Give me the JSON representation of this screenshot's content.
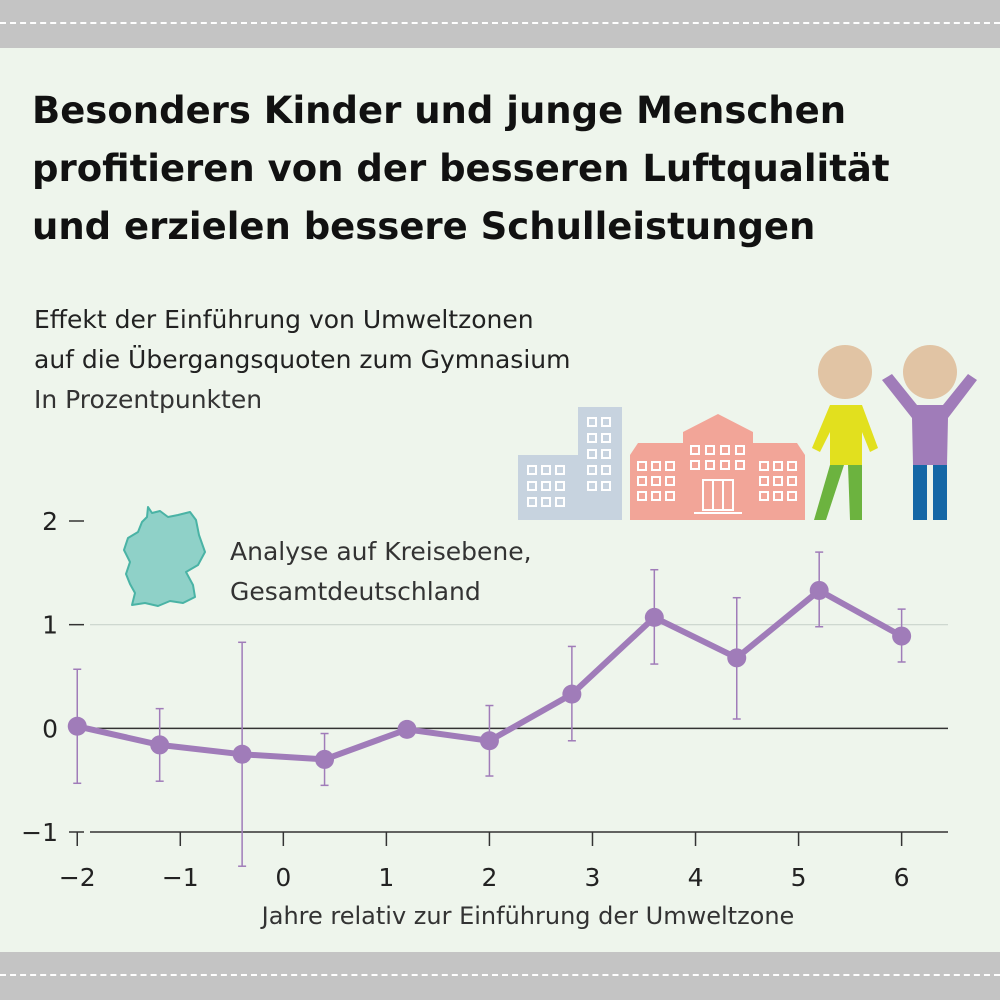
{
  "headline": "Besonders Kinder und junge Menschen profitieren von der besseren Luftqualität und erzielen bessere Schulleistungen",
  "chart_data": {
    "type": "line",
    "title": "Effekt der Einführung von Umweltzonen",
    "subtitle": "auf die Übergangsquoten zum Gymnasium",
    "unit": "In Prozentpunkten",
    "annotation_line1": "Analyse auf Kreisebene,",
    "annotation_line2": "Gesamtdeutschland",
    "xlabel": "Jahre relativ zur Einführung der Umweltzone",
    "ylabel": "",
    "xlim": [
      -2.08,
      6.45
    ],
    "ylim": [
      -1,
      2
    ],
    "x_ticks": [
      -2,
      -1,
      0,
      1,
      2,
      3,
      4,
      5,
      6
    ],
    "x_tick_labels": [
      "−2",
      "−1",
      "0",
      "1",
      "2",
      "3",
      "4",
      "5",
      "6"
    ],
    "y_ticks": [
      -1,
      0,
      1,
      2
    ],
    "y_tick_labels": [
      "−1",
      "0",
      "1",
      "2"
    ],
    "grid": true,
    "series": [
      {
        "color": "#a07cb9",
        "points": [
          {
            "x": -2.0,
            "y": 0.02,
            "lo": -0.53,
            "hi": 0.57
          },
          {
            "x": -1.2,
            "y": -0.16,
            "lo": -0.51,
            "hi": 0.19
          },
          {
            "x": -0.4,
            "y": -0.25,
            "lo": -1.33,
            "hi": 0.83
          },
          {
            "x": 0.4,
            "y": -0.3,
            "lo": -0.55,
            "hi": -0.05
          },
          {
            "x": 1.2,
            "y": -0.01,
            "lo": -0.01,
            "hi": -0.01
          },
          {
            "x": 2.0,
            "y": -0.12,
            "lo": -0.46,
            "hi": 0.22
          },
          {
            "x": 2.8,
            "y": 0.33,
            "lo": -0.12,
            "hi": 0.79
          },
          {
            "x": 3.6,
            "y": 1.07,
            "lo": 0.62,
            "hi": 1.53
          },
          {
            "x": 4.4,
            "y": 0.68,
            "lo": 0.09,
            "hi": 1.26
          },
          {
            "x": 5.2,
            "y": 1.33,
            "lo": 0.98,
            "hi": 1.7
          },
          {
            "x": 6.0,
            "y": 0.89,
            "lo": 0.64,
            "hi": 1.15
          }
        ]
      }
    ]
  },
  "colors": {
    "background": "#eef5ec",
    "band": "#c4c4c4",
    "line": "#a07cb9",
    "germany_map": "#8fd1c8",
    "building_blue": "#c7d3df",
    "school": "#f2a598",
    "child_left_shirt": "#e2e01e",
    "child_left_pants": "#6cb33f",
    "child_right_shirt": "#a07cb9",
    "child_right_pants": "#1567a6",
    "skin": "#e1c4a4"
  },
  "icons": [
    "germany-map-icon",
    "city-buildings-icon",
    "school-building-icon",
    "children-icon"
  ]
}
